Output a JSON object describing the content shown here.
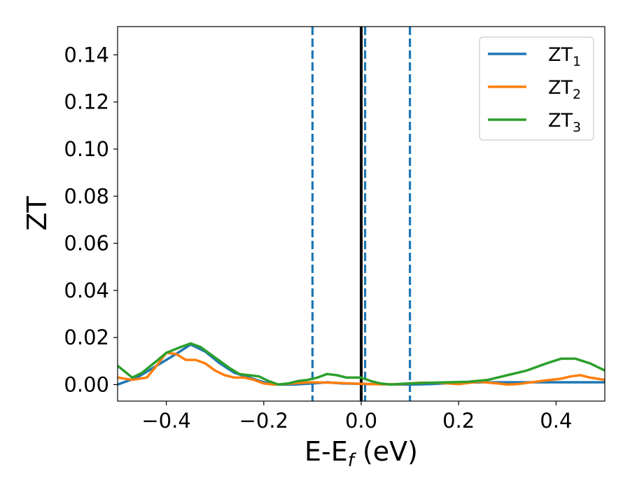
{
  "chart_data": {
    "type": "line",
    "xlabel": {
      "main": "E-E",
      "sub": "f",
      "suffix": " (eV)"
    },
    "ylabel": "ZT",
    "xlim": [
      -0.5,
      0.5
    ],
    "ylim": [
      -0.007,
      0.152
    ],
    "x_ticks": [
      -0.4,
      -0.2,
      0.0,
      0.2,
      0.4
    ],
    "x_tick_labels": [
      "−0.4",
      "−0.2",
      "0.0",
      "0.2",
      "0.4"
    ],
    "y_ticks": [
      0.0,
      0.02,
      0.04,
      0.06,
      0.08,
      0.1,
      0.12,
      0.14
    ],
    "y_tick_labels": [
      "0.00",
      "0.02",
      "0.04",
      "0.06",
      "0.08",
      "0.10",
      "0.12",
      "0.14"
    ],
    "grid": false,
    "legend_position": "top-right",
    "vertical_lines": [
      {
        "x": 0.0,
        "style": "solid",
        "color": "#000000"
      },
      {
        "x": -0.1,
        "style": "dashed",
        "color": "#1f77b4"
      },
      {
        "x": 0.008,
        "style": "dashed",
        "color": "#1f77b4"
      },
      {
        "x": 0.1,
        "style": "dashed",
        "color": "#1f77b4"
      }
    ],
    "series": [
      {
        "name": "ZT",
        "sub": "1",
        "color": "#1f77b4",
        "x": [
          -0.5,
          -0.46,
          -0.42,
          -0.38,
          -0.35,
          -0.32,
          -0.29,
          -0.26,
          -0.23,
          -0.2,
          -0.17,
          -0.14,
          -0.1,
          -0.07,
          -0.04,
          0.0,
          0.04,
          0.07,
          0.1,
          0.14,
          0.17,
          0.2,
          0.25,
          0.3,
          0.35,
          0.4,
          0.45,
          0.5
        ],
        "y": [
          0.0,
          0.003,
          0.008,
          0.013,
          0.017,
          0.014,
          0.009,
          0.005,
          0.003,
          0.001,
          0.0,
          0.0,
          0.0005,
          0.001,
          0.0005,
          0.0003,
          0.0002,
          0.0001,
          0.0,
          0.0002,
          0.0005,
          0.0008,
          0.001,
          0.001,
          0.001,
          0.001,
          0.001,
          0.001
        ]
      },
      {
        "name": "ZT",
        "sub": "2",
        "color": "#ff7f0e",
        "x": [
          -0.5,
          -0.47,
          -0.44,
          -0.42,
          -0.4,
          -0.38,
          -0.36,
          -0.34,
          -0.32,
          -0.3,
          -0.28,
          -0.26,
          -0.24,
          -0.22,
          -0.2,
          -0.18,
          -0.16,
          -0.14,
          -0.12,
          -0.1,
          -0.06,
          -0.02,
          0.0,
          0.02,
          0.05,
          0.08,
          0.12,
          0.16,
          0.2,
          0.24,
          0.28,
          0.3,
          0.32,
          0.35,
          0.38,
          0.41,
          0.43,
          0.45,
          0.47,
          0.5
        ],
        "y": [
          0.003,
          0.002,
          0.003,
          0.008,
          0.0135,
          0.013,
          0.0105,
          0.0105,
          0.009,
          0.006,
          0.004,
          0.003,
          0.003,
          0.002,
          0.0005,
          0.0,
          0.0002,
          0.0005,
          0.0008,
          0.001,
          0.0008,
          0.0005,
          0.0003,
          0.0002,
          0.0001,
          0.0002,
          0.0008,
          0.0008,
          0.0002,
          0.0012,
          0.0005,
          0.0,
          0.0002,
          0.001,
          0.0018,
          0.0025,
          0.0035,
          0.004,
          0.003,
          0.002
        ]
      },
      {
        "name": "ZT",
        "sub": "3",
        "color": "#2ca02c",
        "x": [
          -0.5,
          -0.47,
          -0.45,
          -0.42,
          -0.4,
          -0.37,
          -0.35,
          -0.33,
          -0.31,
          -0.29,
          -0.27,
          -0.25,
          -0.23,
          -0.21,
          -0.19,
          -0.17,
          -0.15,
          -0.13,
          -0.11,
          -0.09,
          -0.07,
          -0.05,
          -0.03,
          -0.01,
          0.0,
          0.02,
          0.04,
          0.06,
          0.08,
          0.1,
          0.14,
          0.18,
          0.22,
          0.26,
          0.3,
          0.34,
          0.38,
          0.41,
          0.44,
          0.47,
          0.5
        ],
        "y": [
          0.008,
          0.003,
          0.005,
          0.01,
          0.0135,
          0.016,
          0.0175,
          0.016,
          0.013,
          0.01,
          0.007,
          0.0045,
          0.004,
          0.0035,
          0.0015,
          0.0,
          0.0005,
          0.0015,
          0.002,
          0.003,
          0.0045,
          0.004,
          0.003,
          0.003,
          0.003,
          0.0015,
          0.0005,
          0.0,
          0.0003,
          0.0005,
          0.0008,
          0.001,
          0.0012,
          0.002,
          0.004,
          0.006,
          0.009,
          0.011,
          0.011,
          0.009,
          0.006
        ]
      }
    ]
  }
}
